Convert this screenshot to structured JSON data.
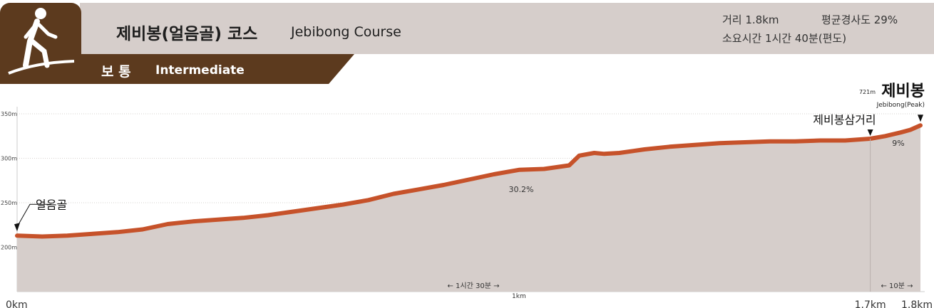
{
  "header": {
    "course_title": "제비봉(얼음골) 코스",
    "course_title_en": "Jebibong Course",
    "difficulty_ko": "보 통",
    "difficulty_en": "Intermediate",
    "distance": "거리 1.8km",
    "avg_slope": "평균경사도 29%",
    "duration": "소요시간 1시간 40분(편도)",
    "icon": "hiker-icon"
  },
  "colors": {
    "banner_bg": "#d6cecb",
    "brown": "#5c3a1e",
    "area_fill": "#d6cecb",
    "line": "#c6522a"
  },
  "chart_data": {
    "type": "area",
    "xlabel": "",
    "ylabel": "",
    "ylim": [
      150,
      358
    ],
    "xlim": [
      0,
      1.8
    ],
    "y_ticks": [
      {
        "value": 200,
        "label": "200m"
      },
      {
        "value": 250,
        "label": "250m"
      },
      {
        "value": 300,
        "label": "300m"
      },
      {
        "value": 350,
        "label": "350m"
      }
    ],
    "x_ticks": [
      {
        "value": 0,
        "label": "0km"
      },
      {
        "value": 1.0,
        "label": "1km"
      },
      {
        "value": 1.7,
        "label": "1.7km"
      },
      {
        "value": 1.8,
        "label": "1.8km"
      }
    ],
    "grid": true,
    "series": [
      {
        "x": [
          0,
          0.05,
          0.1,
          0.15,
          0.2,
          0.25,
          0.3,
          0.35,
          0.4,
          0.45,
          0.5,
          0.55,
          0.6,
          0.65,
          0.7,
          0.75,
          0.8,
          0.85,
          0.9,
          0.95,
          1.0,
          1.05,
          1.1,
          1.12,
          1.15,
          1.17,
          1.2,
          1.25,
          1.3,
          1.35,
          1.4,
          1.45,
          1.5,
          1.55,
          1.6,
          1.65,
          1.7,
          1.73,
          1.76,
          1.78,
          1.8
        ],
        "values": [
          213,
          212,
          213,
          215,
          217,
          220,
          226,
          229,
          231,
          233,
          236,
          240,
          244,
          248,
          253,
          260,
          265,
          270,
          276,
          282,
          287,
          288,
          292,
          303,
          306,
          305,
          306,
          310,
          313,
          315,
          317,
          318,
          319,
          319,
          320,
          320,
          322,
          325,
          329,
          332,
          337
        ]
      }
    ],
    "annotations": {
      "start": "얼음골",
      "junction": "제비봉삼거리",
      "peak_elev": "721m",
      "peak_name": "제비봉",
      "peak_name_en": "Jebibong(Peak)",
      "slope_main": "30.2%",
      "slope_end": "9%",
      "time_main": "← 1시간 30분 →",
      "time_end": "← 10분 →"
    }
  }
}
